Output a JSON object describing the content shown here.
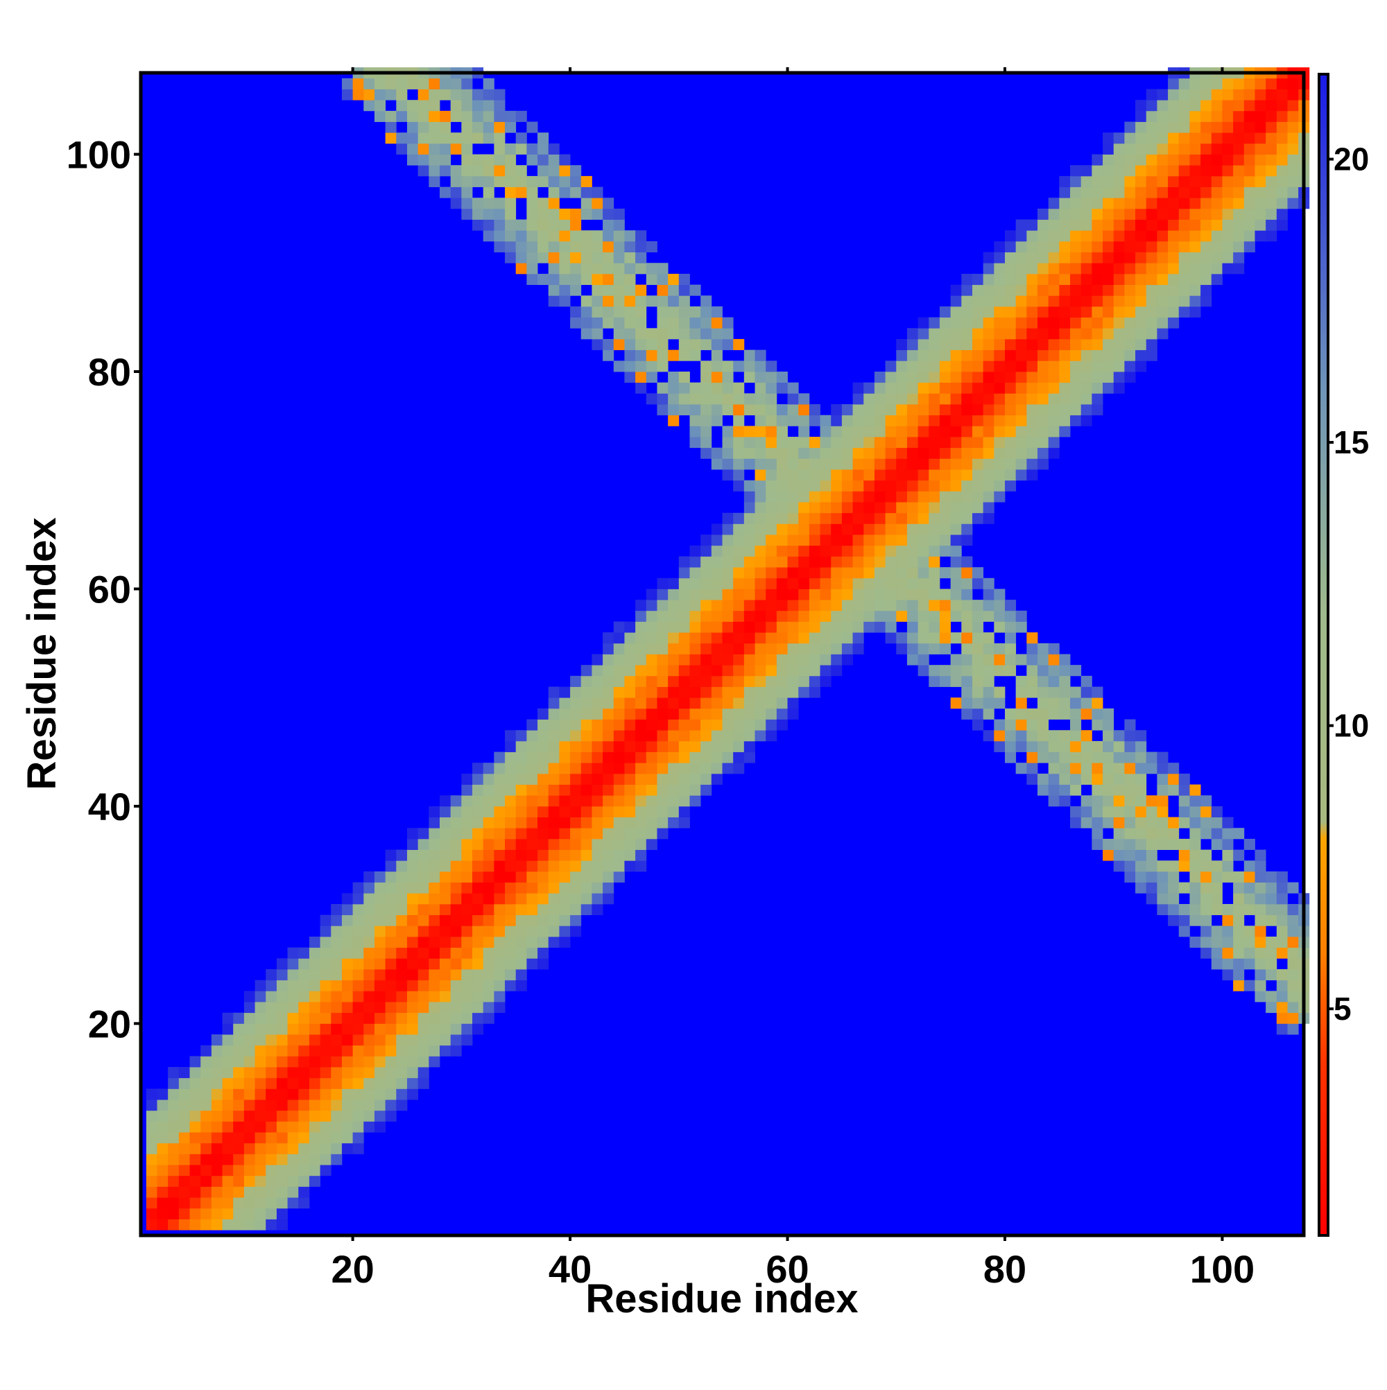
{
  "chart_data": {
    "type": "heatmap",
    "title": "",
    "xlabel": "Residue index",
    "ylabel": "Residue index",
    "n_residues": 107,
    "xlim": [
      1,
      107
    ],
    "ylim": [
      1,
      107
    ],
    "x_ticks": [
      20,
      40,
      60,
      80,
      100
    ],
    "y_ticks": [
      20,
      40,
      60,
      80,
      100
    ],
    "x_tick_labels": [
      "20",
      "40",
      "60",
      "80",
      "100"
    ],
    "y_tick_labels": [
      "20",
      "40",
      "60",
      "80",
      "100"
    ],
    "colorbar": {
      "range": [
        1,
        21.5
      ],
      "ticks": [
        5,
        10,
        15,
        20
      ],
      "tick_labels": [
        "5",
        "10",
        "15",
        "20"
      ],
      "color_stops": [
        {
          "value": 1,
          "color": "#ff0000"
        },
        {
          "value": 4,
          "color": "#ff3300"
        },
        {
          "value": 6,
          "color": "#ff8000"
        },
        {
          "value": 8,
          "color": "#ffa500"
        },
        {
          "value": 8.3,
          "color": "#a8b880"
        },
        {
          "value": 12,
          "color": "#9fba8c"
        },
        {
          "value": 16,
          "color": "#6e94b8"
        },
        {
          "value": 21.5,
          "color": "#1a1ae8"
        }
      ],
      "background_color": "#0000ff"
    },
    "structure": {
      "description_values": "Symmetric contact-distance map: diagonal band plus one anti-diagonal cross band",
      "diagonal_band": {
        "core_value": 1.5,
        "half_width_residues": 10
      },
      "cross_band": {
        "i_range": [
          19,
          104
        ],
        "j_range": [
          22,
          107
        ],
        "center_sum": 131,
        "half_width_residues": 7
      },
      "cutoff_value": 21.5
    },
    "grid": false,
    "legend": "colorbar-right"
  },
  "colors": {
    "background": "#0000ff",
    "frame": "#000000"
  }
}
